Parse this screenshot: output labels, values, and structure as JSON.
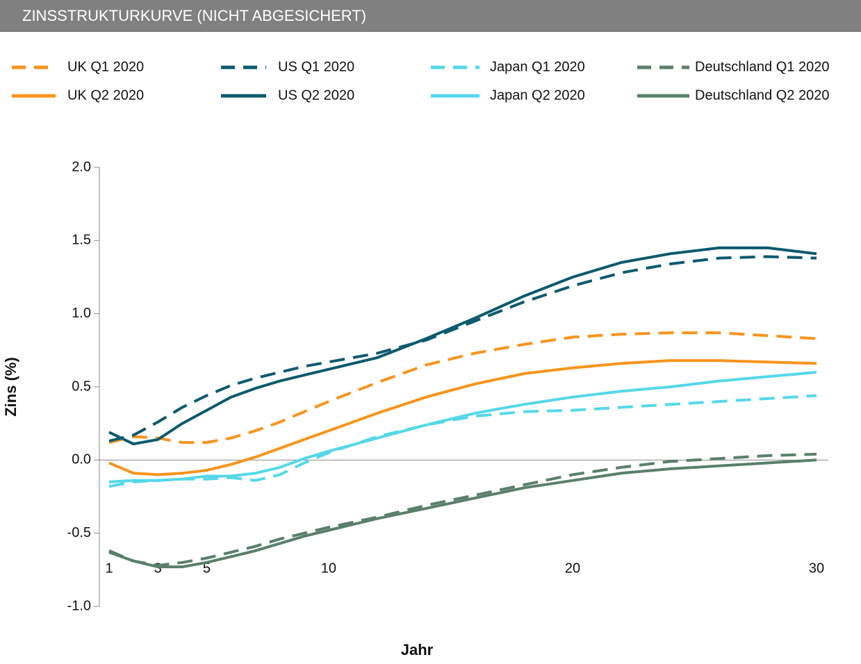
{
  "chart_data": {
    "type": "line",
    "title": "ZINSSTRUKTURKURVE (NICHT ABGESICHERT)",
    "x_label": "Jahr",
    "y_label": "Zins (%)",
    "x": [
      1,
      2,
      3,
      4,
      5,
      6,
      7,
      8,
      9,
      10,
      12,
      14,
      16,
      18,
      20,
      22,
      24,
      26,
      28,
      30
    ],
    "xlim": [
      1,
      30
    ],
    "xticks": [
      1,
      3,
      5,
      10,
      20,
      30
    ],
    "ylim": [
      -1,
      2
    ],
    "yticks": [
      {
        "value": -1,
        "label": "-1.0"
      },
      -0.5,
      {
        "value": 0,
        "label": "0.0"
      },
      0.5,
      {
        "value": 1,
        "label": "1.0"
      },
      1.5,
      {
        "value": 2,
        "label": "2.0"
      }
    ],
    "series": [
      {
        "name": "UK Q1 2020",
        "color": "#f7941d",
        "linestyle": "dashed",
        "values": [
          0.12,
          0.16,
          0.15,
          0.12,
          0.12,
          0.15,
          0.2,
          0.26,
          0.33,
          0.4,
          0.53,
          0.65,
          0.73,
          0.79,
          0.84,
          0.86,
          0.87,
          0.87,
          0.85,
          0.83
        ]
      },
      {
        "name": "UK Q2 2020",
        "color": "#f7941d",
        "linestyle": "solid",
        "values": [
          -0.02,
          -0.09,
          -0.1,
          -0.09,
          -0.07,
          -0.03,
          0.02,
          0.08,
          0.14,
          0.2,
          0.32,
          0.43,
          0.52,
          0.59,
          0.63,
          0.66,
          0.68,
          0.68,
          0.67,
          0.66
        ]
      },
      {
        "name": "US Q1 2020",
        "color": "#0d5a6e",
        "linestyle": "dashed",
        "values": [
          0.13,
          0.17,
          0.26,
          0.36,
          0.44,
          0.51,
          0.56,
          0.6,
          0.64,
          0.67,
          0.73,
          0.82,
          0.95,
          1.08,
          1.19,
          1.28,
          1.34,
          1.38,
          1.39,
          1.38
        ]
      },
      {
        "name": "US Q2 2020",
        "color": "#0d5a6e",
        "linestyle": "solid",
        "values": [
          0.19,
          0.11,
          0.14,
          0.25,
          0.34,
          0.43,
          0.49,
          0.54,
          0.58,
          0.62,
          0.7,
          0.83,
          0.97,
          1.12,
          1.25,
          1.35,
          1.41,
          1.45,
          1.45,
          1.41
        ]
      },
      {
        "name": "Japan Q1 2020",
        "color": "#55d8e8",
        "linestyle": "dashed",
        "values": [
          -0.18,
          -0.15,
          -0.14,
          -0.13,
          -0.13,
          -0.12,
          -0.14,
          -0.1,
          -0.02,
          0.05,
          0.16,
          0.24,
          0.3,
          0.33,
          0.34,
          0.36,
          0.38,
          0.4,
          0.42,
          0.44
        ]
      },
      {
        "name": "Japan Q2 2020",
        "color": "#55d8e8",
        "linestyle": "solid",
        "values": [
          -0.15,
          -0.14,
          -0.14,
          -0.13,
          -0.11,
          -0.11,
          -0.09,
          -0.05,
          0.01,
          0.06,
          0.15,
          0.24,
          0.32,
          0.38,
          0.43,
          0.47,
          0.5,
          0.54,
          0.57,
          0.6
        ]
      },
      {
        "name": "Deutschland Q1 2020",
        "color": "#5a7f6b",
        "linestyle": "dashed",
        "values": [
          -0.62,
          -0.69,
          -0.72,
          -0.7,
          -0.67,
          -0.63,
          -0.59,
          -0.54,
          -0.5,
          -0.46,
          -0.39,
          -0.31,
          -0.24,
          -0.17,
          -0.1,
          -0.05,
          -0.01,
          0.01,
          0.03,
          0.04
        ]
      },
      {
        "name": "Deutschland Q2 2020",
        "color": "#5a7f6b",
        "linestyle": "solid",
        "values": [
          -0.63,
          -0.69,
          -0.73,
          -0.73,
          -0.7,
          -0.66,
          -0.62,
          -0.57,
          -0.52,
          -0.48,
          -0.4,
          -0.33,
          -0.26,
          -0.19,
          -0.14,
          -0.09,
          -0.06,
          -0.04,
          -0.02,
          0.0
        ]
      }
    ]
  }
}
